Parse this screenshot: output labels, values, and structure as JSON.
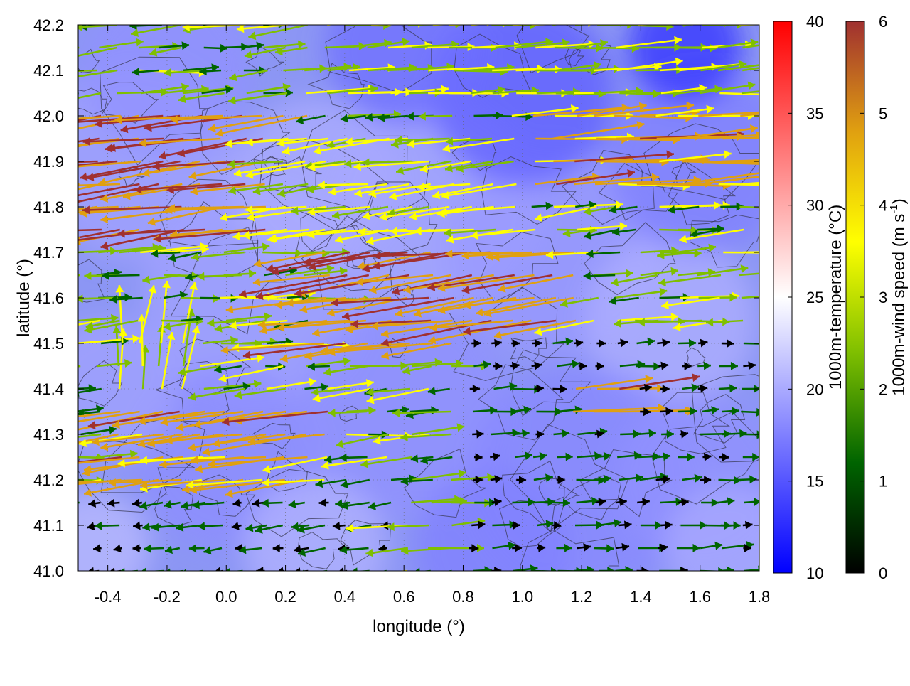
{
  "chart_data": {
    "type": "heatmap",
    "title": "",
    "xlabel": "longitude (°)",
    "ylabel": "latitude (°)",
    "xlim": [
      -0.5,
      1.8
    ],
    "ylim": [
      41.0,
      42.2
    ],
    "grid": true,
    "x_ticks": [
      "-0.4",
      "-0.2",
      "0.0",
      "0.2",
      "0.4",
      "0.6",
      "0.8",
      "1.0",
      "1.2",
      "1.4",
      "1.6",
      "1.8"
    ],
    "x_tick_values": [
      -0.4,
      -0.2,
      0.0,
      0.2,
      0.4,
      0.6,
      0.8,
      1.0,
      1.2,
      1.4,
      1.6,
      1.8
    ],
    "y_ticks": [
      "41.0",
      "41.1",
      "41.2",
      "41.3",
      "41.4",
      "41.5",
      "41.6",
      "41.7",
      "41.8",
      "41.9",
      "42.0",
      "42.1",
      "42.2"
    ],
    "y_tick_values": [
      41.0,
      41.1,
      41.2,
      41.3,
      41.4,
      41.5,
      41.6,
      41.7,
      41.8,
      41.9,
      42.0,
      42.1,
      42.2
    ],
    "temperature_colorbar": {
      "label": "1000m-temperature (°C)",
      "range": [
        10,
        40
      ],
      "ticks": [
        "10",
        "15",
        "20",
        "25",
        "30",
        "35",
        "40"
      ],
      "tick_values": [
        10,
        15,
        20,
        25,
        30,
        35,
        40
      ],
      "colors": [
        "#0000ff",
        "#ffffff",
        "#ff0000"
      ]
    },
    "wind_colorbar": {
      "label_main": "1000m-wind speed (m s",
      "label_sup": "-1",
      "label_end": ")",
      "range": [
        0,
        6
      ],
      "ticks": [
        "0",
        "1",
        "2",
        "3",
        "4",
        "5",
        "6"
      ],
      "tick_values": [
        0,
        1,
        2,
        3,
        4,
        5,
        6
      ],
      "colors": [
        "#000000",
        "#006400",
        "#7fbf00",
        "#ffff00",
        "#e0a010",
        "#a03030"
      ]
    },
    "background_temperature_range_approx": [
      14,
      20
    ],
    "wind_regions_approx": [
      {
        "lon": [
          -0.5,
          0.3
        ],
        "lat": [
          41.7,
          42.0
        ],
        "direction": "west",
        "speed": 6
      },
      {
        "lon": [
          0.3,
          1.2
        ],
        "lat": [
          41.45,
          41.7
        ],
        "direction": "west",
        "speed": 6
      },
      {
        "lon": [
          -0.4,
          0.4
        ],
        "lat": [
          41.15,
          41.35
        ],
        "direction": "west",
        "speed": 5.5
      },
      {
        "lon": [
          1.0,
          1.8
        ],
        "lat": [
          41.8,
          42.0
        ],
        "direction": "east",
        "speed": 5.5
      },
      {
        "lon": [
          0.3,
          1.8
        ],
        "lat": [
          42.0,
          42.2
        ],
        "direction": "east",
        "speed": 3.5
      },
      {
        "lon": [
          0.2,
          1.0
        ],
        "lat": [
          41.7,
          41.95
        ],
        "direction": "west",
        "speed": 4
      },
      {
        "lon": [
          0.8,
          1.8
        ],
        "lat": [
          41.0,
          41.5
        ],
        "direction": "east",
        "speed": 1.5
      },
      {
        "lon": [
          -0.5,
          0.6
        ],
        "lat": [
          41.0,
          41.15
        ],
        "direction": "west",
        "speed": 1.5
      },
      {
        "lon": [
          -0.4,
          -0.1
        ],
        "lat": [
          41.35,
          41.5
        ],
        "direction": "north",
        "speed": 3.5
      },
      {
        "lon": [
          1.15,
          1.35
        ],
        "lat": [
          41.3,
          41.4
        ],
        "direction": "east",
        "speed": 6
      }
    ]
  }
}
